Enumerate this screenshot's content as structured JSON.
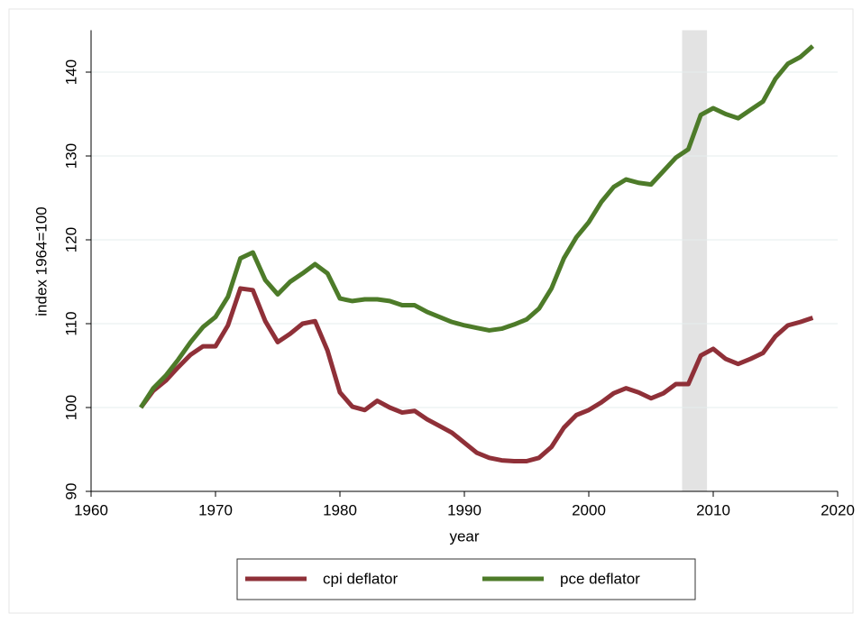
{
  "chart_data": {
    "type": "line",
    "x_label": "year",
    "y_label": "index 1964=100",
    "x": [
      1964,
      1965,
      1966,
      1967,
      1968,
      1969,
      1970,
      1971,
      1972,
      1973,
      1974,
      1975,
      1976,
      1977,
      1978,
      1979,
      1980,
      1981,
      1982,
      1983,
      1984,
      1985,
      1986,
      1987,
      1988,
      1989,
      1990,
      1991,
      1992,
      1993,
      1994,
      1995,
      1996,
      1997,
      1998,
      1999,
      2000,
      2001,
      2002,
      2003,
      2004,
      2005,
      2006,
      2007,
      2008,
      2009,
      2010,
      2011,
      2012,
      2013,
      2014,
      2015,
      2016,
      2017,
      2018
    ],
    "series": [
      {
        "name": "cpi deflator",
        "color": "#8f3038",
        "values": [
          100,
          102,
          103.2,
          104.8,
          106.3,
          107.3,
          107.3,
          109.8,
          114.2,
          114.0,
          110.3,
          107.8,
          108.8,
          110.0,
          110.3,
          106.8,
          101.8,
          100.1,
          99.7,
          100.8,
          100.0,
          99.4,
          99.6,
          98.6,
          97.8,
          97.0,
          95.8,
          94.6,
          94.0,
          93.7,
          93.6,
          93.6,
          94.0,
          95.3,
          97.6,
          99.1,
          99.7,
          100.6,
          101.7,
          102.3,
          101.8,
          101.1,
          101.7,
          102.8,
          102.8,
          106.2,
          107.0,
          105.8,
          105.2,
          105.8,
          106.5,
          108.5,
          109.8,
          110.2,
          110.7
        ]
      },
      {
        "name": "pce deflator",
        "color": "#4d7b29",
        "values": [
          100,
          102.3,
          103.8,
          105.7,
          107.8,
          109.6,
          110.8,
          113.2,
          117.8,
          118.5,
          115.2,
          113.5,
          115.0,
          116.0,
          117.1,
          116.0,
          113.0,
          112.7,
          112.9,
          112.9,
          112.7,
          112.2,
          112.2,
          111.4,
          110.8,
          110.2,
          109.8,
          109.5,
          109.2,
          109.4,
          109.9,
          110.5,
          111.8,
          114.2,
          117.8,
          120.3,
          122.1,
          124.5,
          126.3,
          127.2,
          126.8,
          126.6,
          128.2,
          129.8,
          130.8,
          134.9,
          135.7,
          135.0,
          134.5,
          135.5,
          136.5,
          139.2,
          141.0,
          141.8,
          143.1
        ]
      }
    ],
    "shade_x": [
      2007.5,
      2009.5
    ],
    "xlim": [
      1960,
      2020
    ],
    "xticks": [
      1960,
      1970,
      1980,
      1990,
      2000,
      2010,
      2020
    ],
    "ylim": [
      90,
      145
    ],
    "yticks": [
      90,
      100,
      110,
      120,
      130,
      140
    ],
    "grid": true
  }
}
